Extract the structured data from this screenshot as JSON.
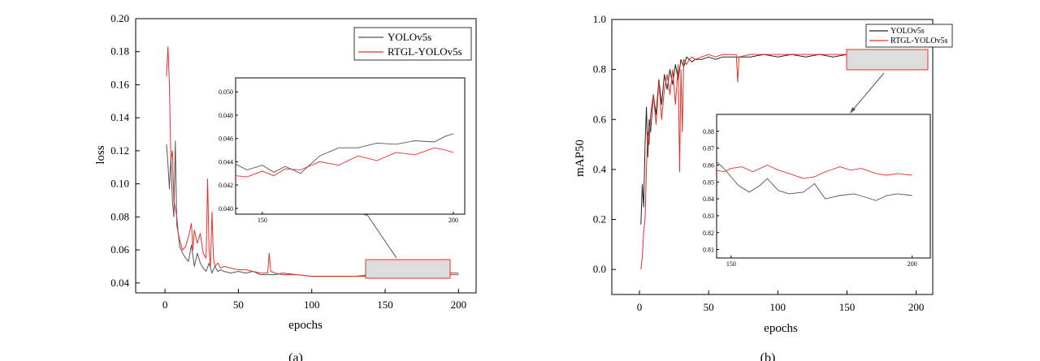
{
  "chart_data": [
    {
      "type": "line",
      "panel_label": "(a)",
      "xlabel": "epochs",
      "ylabel": "loss",
      "xlim": [
        -20,
        212
      ],
      "ylim": [
        0.034,
        0.2
      ],
      "x_ticks": [
        0,
        50,
        100,
        150,
        200
      ],
      "y_ticks": [
        0.04,
        0.06,
        0.08,
        0.1,
        0.12,
        0.14,
        0.16,
        0.18,
        0.2
      ],
      "y_tick_labels": [
        "0.04",
        "0.06",
        "0.08",
        "0.10",
        "0.12",
        "0.14",
        "0.16",
        "0.18",
        "0.20"
      ],
      "legend": {
        "placement": "top-right"
      },
      "series": [
        {
          "name": "YOLOv5s",
          "color": "#555555",
          "x": [
            1,
            2,
            3,
            4,
            5,
            6,
            7,
            8,
            9,
            10,
            12,
            14,
            16,
            18,
            20,
            22,
            24,
            26,
            28,
            30,
            32,
            34,
            36,
            38,
            40,
            45,
            50,
            55,
            60,
            65,
            70,
            75,
            80,
            90,
            100,
            110,
            120,
            130,
            140,
            150,
            160,
            170,
            180,
            190,
            200
          ],
          "y": [
            0.124,
            0.112,
            0.097,
            0.116,
            0.09,
            0.08,
            0.126,
            0.075,
            0.07,
            0.062,
            0.058,
            0.055,
            0.053,
            0.063,
            0.05,
            0.058,
            0.052,
            0.049,
            0.047,
            0.052,
            0.046,
            0.05,
            0.047,
            0.048,
            0.047,
            0.046,
            0.047,
            0.046,
            0.047,
            0.045,
            0.045,
            0.045,
            0.046,
            0.045,
            0.044,
            0.044,
            0.044,
            0.044,
            0.045,
            0.044,
            0.044,
            0.045,
            0.046,
            0.046,
            0.046
          ]
        },
        {
          "name": "RTGL-YOLOv5s",
          "color": "#e8302a",
          "x": [
            1,
            2,
            3,
            4,
            5,
            6,
            7,
            8,
            9,
            10,
            12,
            14,
            16,
            18,
            19,
            20,
            22,
            24,
            26,
            28,
            29,
            30,
            31,
            32,
            33,
            34,
            36,
            38,
            40,
            45,
            50,
            55,
            60,
            65,
            70,
            71,
            72,
            75,
            80,
            90,
            100,
            110,
            120,
            130,
            140,
            150,
            160,
            170,
            180,
            190,
            200
          ],
          "y": [
            0.165,
            0.183,
            0.16,
            0.115,
            0.12,
            0.09,
            0.085,
            0.08,
            0.07,
            0.066,
            0.06,
            0.062,
            0.068,
            0.076,
            0.06,
            0.072,
            0.064,
            0.07,
            0.058,
            0.055,
            0.103,
            0.06,
            0.05,
            0.083,
            0.055,
            0.05,
            0.052,
            0.049,
            0.05,
            0.049,
            0.048,
            0.048,
            0.047,
            0.046,
            0.046,
            0.058,
            0.047,
            0.046,
            0.045,
            0.045,
            0.044,
            0.044,
            0.044,
            0.044,
            0.044,
            0.044,
            0.044,
            0.045,
            0.045,
            0.045,
            0.045
          ]
        }
      ],
      "inset": {
        "x_ticks": [
          150,
          200
        ],
        "xlim": [
          143,
          203
        ],
        "ylim": [
          0.0395,
          0.0512
        ],
        "y_ticks": [
          0.04,
          0.042,
          0.044,
          0.046,
          0.048,
          0.05
        ],
        "y_tick_labels": [
          "0.040",
          "0.042",
          "0.044",
          "0.046",
          "0.048",
          "0.050"
        ],
        "series": [
          {
            "name": "YOLOv5s",
            "color": "#555555",
            "x": [
              143,
              146,
              150,
              153,
              156,
              160,
              165,
              170,
              175,
              180,
              185,
              190,
              195,
              198,
              200
            ],
            "y": [
              0.0438,
              0.0433,
              0.0437,
              0.0431,
              0.0436,
              0.043,
              0.0445,
              0.0452,
              0.0452,
              0.0456,
              0.0455,
              0.0458,
              0.0457,
              0.0462,
              0.0464
            ]
          },
          {
            "name": "RTGL-YOLOv5s",
            "color": "#e8302a",
            "x": [
              143,
              146,
              150,
              153,
              156,
              160,
              165,
              170,
              175,
              180,
              185,
              190,
              195,
              198,
              200
            ],
            "y": [
              0.0428,
              0.0427,
              0.0432,
              0.0428,
              0.0434,
              0.0433,
              0.044,
              0.0437,
              0.0445,
              0.0441,
              0.0448,
              0.0446,
              0.0452,
              0.045,
              0.0448
            ]
          }
        ]
      }
    },
    {
      "type": "line",
      "panel_label": "(b)",
      "xlabel": "epochs",
      "ylabel": "mAP50",
      "xlim": [
        -20,
        212
      ],
      "ylim": [
        -0.1,
        1.0
      ],
      "x_ticks": [
        0,
        50,
        100,
        150,
        200
      ],
      "y_ticks": [
        0.0,
        0.2,
        0.4,
        0.6,
        0.8,
        1.0
      ],
      "y_tick_labels": [
        "0.0",
        "0.2",
        "0.4",
        "0.6",
        "0.8",
        "1.0"
      ],
      "legend": {
        "placement": "top-right"
      },
      "series": [
        {
          "name": "YOLOv5s",
          "color": "#222222",
          "x": [
            1,
            2,
            3,
            4,
            5,
            6,
            7,
            8,
            10,
            12,
            14,
            16,
            18,
            20,
            22,
            24,
            26,
            28,
            30,
            32,
            34,
            36,
            38,
            40,
            45,
            50,
            55,
            60,
            70,
            80,
            90,
            100,
            110,
            120,
            130,
            140,
            150,
            160,
            170,
            180,
            190,
            200
          ],
          "y": [
            0.18,
            0.34,
            0.25,
            0.5,
            0.65,
            0.45,
            0.6,
            0.55,
            0.7,
            0.62,
            0.76,
            0.66,
            0.78,
            0.72,
            0.8,
            0.74,
            0.82,
            0.76,
            0.84,
            0.81,
            0.85,
            0.84,
            0.83,
            0.84,
            0.84,
            0.85,
            0.84,
            0.85,
            0.85,
            0.85,
            0.86,
            0.85,
            0.86,
            0.85,
            0.86,
            0.85,
            0.86,
            0.85,
            0.85,
            0.84,
            0.84,
            0.84
          ]
        },
        {
          "name": "RTGL-YOLOv5s",
          "color": "#e8302a",
          "x": [
            1,
            2,
            3,
            4,
            5,
            6,
            7,
            8,
            10,
            12,
            14,
            16,
            18,
            20,
            22,
            24,
            26,
            28,
            29,
            30,
            31,
            32,
            34,
            36,
            38,
            40,
            45,
            50,
            55,
            60,
            70,
            71,
            72,
            80,
            90,
            100,
            110,
            120,
            130,
            140,
            150,
            160,
            170,
            180,
            190,
            200
          ],
          "y": [
            0.0,
            0.05,
            0.15,
            0.2,
            0.4,
            0.55,
            0.5,
            0.62,
            0.7,
            0.58,
            0.75,
            0.6,
            0.72,
            0.78,
            0.7,
            0.8,
            0.66,
            0.82,
            0.39,
            0.8,
            0.55,
            0.84,
            0.82,
            0.84,
            0.85,
            0.84,
            0.85,
            0.86,
            0.85,
            0.86,
            0.86,
            0.75,
            0.85,
            0.86,
            0.86,
            0.86,
            0.86,
            0.86,
            0.86,
            0.86,
            0.86,
            0.86,
            0.86,
            0.86,
            0.86,
            0.86
          ]
        }
      ],
      "inset": {
        "x_ticks": [
          150,
          200
        ],
        "xlim": [
          146,
          205
        ],
        "ylim": [
          0.805,
          0.89
        ],
        "y_ticks": [
          0.81,
          0.82,
          0.83,
          0.84,
          0.85,
          0.86,
          0.87,
          0.88
        ],
        "y_tick_labels": [
          "0.81",
          "0.82",
          "0.83",
          "0.84",
          "0.85",
          "0.86",
          "0.87",
          "0.88"
        ],
        "series": [
          {
            "name": "YOLOv5s",
            "color": "#555555",
            "x": [
              146,
              148,
              150,
              152,
              155,
              158,
              160,
              163,
              166,
              170,
              173,
              176,
              180,
              184,
              187,
              190,
              193,
              196,
              200
            ],
            "y": [
              0.862,
              0.858,
              0.853,
              0.848,
              0.844,
              0.848,
              0.852,
              0.845,
              0.843,
              0.844,
              0.849,
              0.84,
              0.842,
              0.843,
              0.841,
              0.839,
              0.842,
              0.843,
              0.842
            ]
          },
          {
            "name": "RTGL-YOLOv5s",
            "color": "#e8302a",
            "x": [
              146,
              148,
              150,
              153,
              156,
              160,
              163,
              166,
              170,
              173,
              176,
              180,
              183,
              186,
              190,
              193,
              196,
              200
            ],
            "y": [
              0.857,
              0.856,
              0.858,
              0.859,
              0.856,
              0.86,
              0.857,
              0.855,
              0.852,
              0.853,
              0.856,
              0.859,
              0.857,
              0.858,
              0.855,
              0.854,
              0.855,
              0.854
            ]
          }
        ]
      }
    }
  ]
}
